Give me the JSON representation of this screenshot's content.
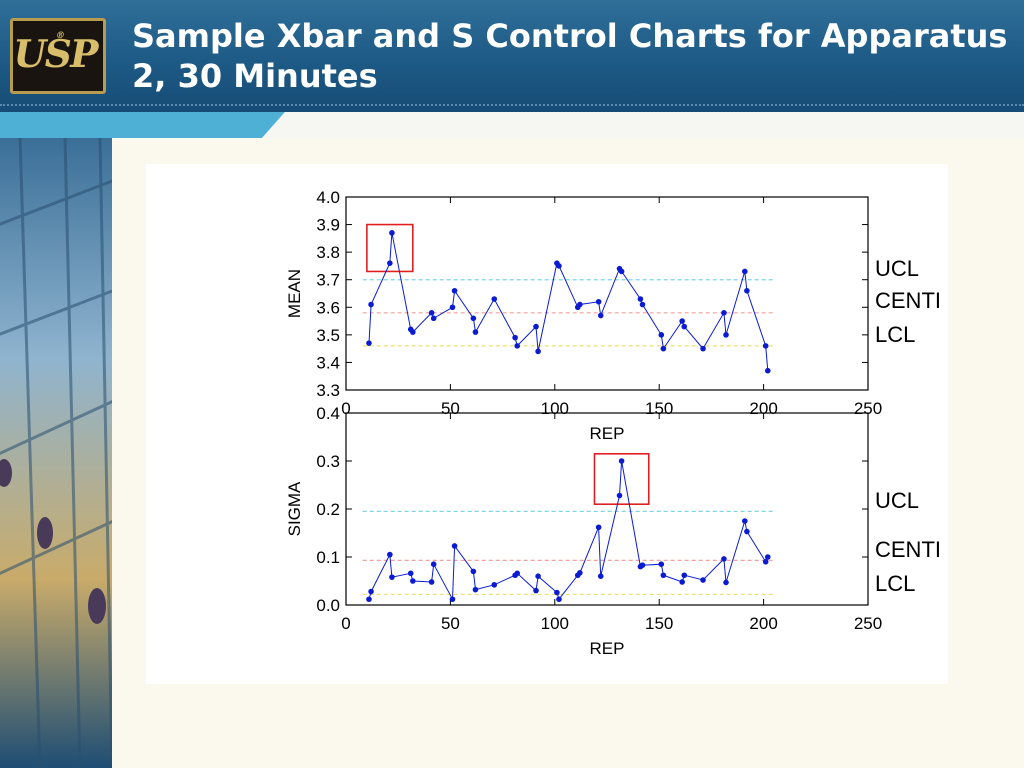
{
  "slide": {
    "title": "Sample Xbar and S Control Charts for Apparatus 2, 30 Minutes"
  },
  "logo": {
    "text": "USP",
    "reg": "®"
  },
  "colors": {
    "header": "#1d5a86",
    "accent": "#4fb0d6",
    "series": "#0a1bd2",
    "ucl": "#7fd4e8",
    "center": "#f2a0a0",
    "lcl": "#e8e070",
    "box": "#e02020"
  },
  "chart_data": [
    {
      "type": "line",
      "xlabel": "REP",
      "ylabel": "MEAN",
      "xlim": [
        0,
        250
      ],
      "ylim": [
        3.3,
        4.0
      ],
      "xticks": [
        "0",
        "50",
        "100",
        "150",
        "200",
        "250"
      ],
      "yticks": [
        "3.3",
        "3.4",
        "3.5",
        "3.6",
        "3.7",
        "3.8",
        "3.9",
        "4.0"
      ],
      "limits": {
        "ucl": 3.7,
        "center": 3.58,
        "lcl": 3.46
      },
      "legend": [
        "UCL",
        "CENTI",
        "LCL"
      ],
      "highlight": {
        "x0": 10,
        "x1": 32,
        "y0": 3.73,
        "y1": 3.9
      },
      "series": [
        {
          "x": [
            11,
            12,
            21,
            22,
            31,
            32,
            41,
            42,
            51,
            52,
            61,
            62,
            71,
            81,
            82,
            91,
            92,
            101,
            102,
            111,
            112,
            121,
            122,
            131,
            132,
            141,
            142,
            151,
            152,
            161,
            162,
            171,
            181,
            182,
            191,
            192,
            201,
            202
          ],
          "y": [
            3.47,
            3.61,
            3.76,
            3.87,
            3.52,
            3.51,
            3.58,
            3.56,
            3.6,
            3.66,
            3.56,
            3.51,
            3.63,
            3.49,
            3.46,
            3.53,
            3.44,
            3.76,
            3.75,
            3.6,
            3.61,
            3.62,
            3.57,
            3.74,
            3.73,
            3.63,
            3.61,
            3.5,
            3.45,
            3.55,
            3.53,
            3.45,
            3.58,
            3.5,
            3.73,
            3.66,
            3.46,
            3.37
          ]
        }
      ]
    },
    {
      "type": "line",
      "xlabel": "REP",
      "ylabel": "SIGMA",
      "xlim": [
        0,
        250
      ],
      "ylim": [
        0.0,
        0.4
      ],
      "xticks": [
        "0",
        "50",
        "100",
        "150",
        "200",
        "250"
      ],
      "yticks": [
        "0.0",
        "0.1",
        "0.2",
        "0.3",
        "0.4"
      ],
      "limits": {
        "ucl": 0.195,
        "center": 0.093,
        "lcl": 0.022
      },
      "legend": [
        "UCL",
        "CENTI",
        "LCL"
      ],
      "highlight": {
        "x0": 119,
        "x1": 145,
        "y0": 0.21,
        "y1": 0.315
      },
      "series": [
        {
          "x": [
            11,
            12,
            21,
            22,
            31,
            32,
            41,
            42,
            51,
            52,
            61,
            62,
            71,
            81,
            82,
            91,
            92,
            101,
            102,
            111,
            112,
            121,
            122,
            131,
            132,
            141,
            142,
            151,
            152,
            161,
            162,
            171,
            181,
            182,
            191,
            192,
            201,
            202
          ],
          "y": [
            0.012,
            0.028,
            0.105,
            0.058,
            0.066,
            0.05,
            0.048,
            0.085,
            0.012,
            0.123,
            0.07,
            0.032,
            0.042,
            0.062,
            0.066,
            0.03,
            0.06,
            0.026,
            0.012,
            0.062,
            0.067,
            0.162,
            0.06,
            0.228,
            0.3,
            0.08,
            0.083,
            0.085,
            0.062,
            0.048,
            0.062,
            0.052,
            0.096,
            0.047,
            0.175,
            0.153,
            0.09,
            0.1
          ]
        }
      ]
    }
  ]
}
